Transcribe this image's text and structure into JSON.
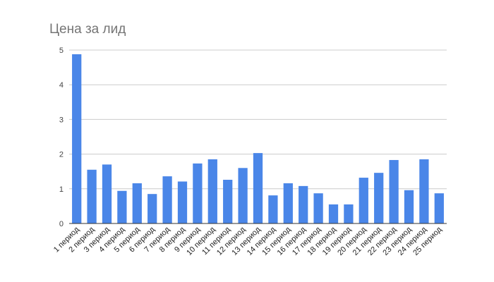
{
  "chart_data": {
    "type": "bar",
    "title": "Цена за лид",
    "xlabel": "",
    "ylabel": "",
    "ylim": [
      0,
      5
    ],
    "yticks": [
      0,
      1,
      2,
      3,
      4,
      5
    ],
    "grid": true,
    "legend": "none",
    "bar_color": "#4a86e8",
    "categories": [
      "1 период",
      "2 период",
      "3 период",
      "4 период",
      "5 период",
      "6 период",
      "7 период",
      "8 период",
      "9 период",
      "10 период",
      "11 период",
      "12 период",
      "13 период",
      "14 период",
      "15 период",
      "16 период",
      "17 период",
      "18 период",
      "19 период",
      "20 период",
      "21 период",
      "22 период",
      "23 период",
      "24 период",
      "25 период"
    ],
    "values": [
      4.88,
      1.55,
      1.7,
      0.94,
      1.16,
      0.85,
      1.36,
      1.21,
      1.73,
      1.85,
      1.26,
      1.6,
      2.03,
      0.81,
      1.16,
      1.08,
      0.87,
      0.55,
      0.55,
      1.32,
      1.46,
      1.83,
      0.96,
      1.85,
      0.87
    ]
  }
}
